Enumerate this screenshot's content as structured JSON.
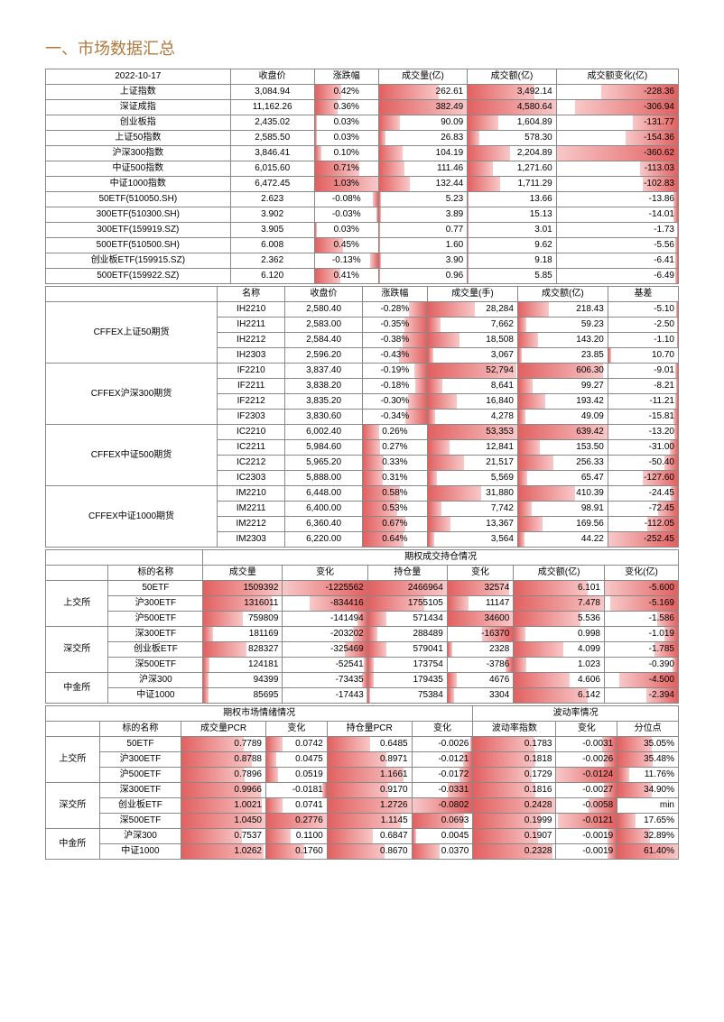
{
  "title": "一、市场数据汇总",
  "colors": {
    "bar_start": "#e26060",
    "bar_end": "#f8c8c8",
    "title": "#b07a3c",
    "border": "#888888"
  },
  "table1": {
    "date": "2022-10-17",
    "headers": [
      "收盘价",
      "涨跌幅",
      "成交量(亿)",
      "成交额(亿)",
      "成交额变化(亿)"
    ],
    "rows": [
      {
        "n": "上证指数",
        "close": "3,084.94",
        "chg": "0.42%",
        "chg_b": 42,
        "vol": "262.61",
        "vol_b": 68,
        "amt": "3,492.14",
        "amt_b": 76,
        "d": "-228.36",
        "d_b": -63
      },
      {
        "n": "深证成指",
        "close": "11,162.26",
        "chg": "0.36%",
        "chg_b": 36,
        "vol": "382.49",
        "vol_b": 100,
        "amt": "4,580.64",
        "amt_b": 100,
        "d": "-306.94",
        "d_b": -85
      },
      {
        "n": "创业板指",
        "close": "2,435.02",
        "chg": "0.03%",
        "chg_b": 3,
        "vol": "90.09",
        "vol_b": 24,
        "amt": "1,604.89",
        "amt_b": 35,
        "d": "-131.77",
        "d_b": -37
      },
      {
        "n": "上证50指数",
        "close": "2,585.50",
        "chg": "0.03%",
        "chg_b": 3,
        "vol": "26.83",
        "vol_b": 7,
        "amt": "578.30",
        "amt_b": 13,
        "d": "-154.36",
        "d_b": -43
      },
      {
        "n": "沪深300指数",
        "close": "3,846.41",
        "chg": "0.10%",
        "chg_b": 10,
        "vol": "104.19",
        "vol_b": 27,
        "amt": "2,204.89",
        "amt_b": 48,
        "d": "-360.62",
        "d_b": -100
      },
      {
        "n": "中证500指数",
        "close": "6,015.60",
        "chg": "0.71%",
        "chg_b": 71,
        "vol": "111.46",
        "vol_b": 29,
        "amt": "1,271.60",
        "amt_b": 28,
        "d": "-113.03",
        "d_b": -31
      },
      {
        "n": "中证1000指数",
        "close": "6,472.45",
        "chg": "1.03%",
        "chg_b": 100,
        "vol": "132.44",
        "vol_b": 35,
        "amt": "1,711.29",
        "amt_b": 37,
        "d": "-102.83",
        "d_b": -29
      },
      {
        "n": "50ETF(510050.SH)",
        "close": "2.623",
        "chg": "-0.08%",
        "chg_b": -8,
        "vol": "5.23",
        "vol_b": 2,
        "amt": "13.66",
        "amt_b": 1,
        "d": "-13.86",
        "d_b": -4
      },
      {
        "n": "300ETF(510300.SH)",
        "close": "3.902",
        "chg": "-0.03%",
        "chg_b": -3,
        "vol": "3.89",
        "vol_b": 2,
        "amt": "15.13",
        "amt_b": 1,
        "d": "-14.01",
        "d_b": -4
      },
      {
        "n": "300ETF(159919.SZ)",
        "close": "3.905",
        "chg": "0.03%",
        "chg_b": 3,
        "vol": "0.77",
        "vol_b": 1,
        "amt": "3.01",
        "amt_b": 1,
        "d": "-1.73",
        "d_b": -1
      },
      {
        "n": "500ETF(510500.SH)",
        "close": "6.008",
        "chg": "0.45%",
        "chg_b": 45,
        "vol": "1.60",
        "vol_b": 1,
        "amt": "9.62",
        "amt_b": 1,
        "d": "-5.56",
        "d_b": -2
      },
      {
        "n": "创业板ETF(159915.SZ)",
        "close": "2.362",
        "chg": "-0.13%",
        "chg_b": -13,
        "vol": "3.90",
        "vol_b": 2,
        "amt": "9.18",
        "amt_b": 1,
        "d": "-6.41",
        "d_b": -2
      },
      {
        "n": "500ETF(159922.SZ)",
        "close": "6.120",
        "chg": "0.41%",
        "chg_b": 41,
        "vol": "0.96",
        "vol_b": 1,
        "amt": "5.85",
        "amt_b": 1,
        "d": "-6.49",
        "d_b": -2
      }
    ]
  },
  "table2": {
    "headers": [
      "",
      "名称",
      "收盘价",
      "涨跌幅",
      "成交量(手)",
      "成交额(亿)",
      "基差"
    ],
    "groups": [
      {
        "g": "CFFEX上证50期货",
        "rows": [
          {
            "n": "IH2210",
            "c": "2,580.40",
            "chg": "-0.28%",
            "chg_b": -28,
            "v": "28,284",
            "v_b": 53,
            "a": "218.43",
            "a_b": 34,
            "b": "-5.10",
            "b_b": -2
          },
          {
            "n": "IH2211",
            "c": "2,583.00",
            "chg": "-0.35%",
            "chg_b": -35,
            "v": "7,662",
            "v_b": 14,
            "a": "59.23",
            "a_b": 9,
            "b": "-2.50",
            "b_b": -1
          },
          {
            "n": "IH2212",
            "c": "2,584.40",
            "chg": "-0.38%",
            "chg_b": -38,
            "v": "18,508",
            "v_b": 35,
            "a": "143.20",
            "a_b": 22,
            "b": "-1.10",
            "b_b": -1
          },
          {
            "n": "IH2303",
            "c": "2,596.20",
            "chg": "-0.43%",
            "chg_b": -43,
            "v": "3,067",
            "v_b": 6,
            "a": "23.85",
            "a_b": 4,
            "b": "10.70",
            "b_b": 4
          }
        ]
      },
      {
        "g": "CFFEX沪深300期货",
        "rows": [
          {
            "n": "IF2210",
            "c": "3,837.40",
            "chg": "-0.19%",
            "chg_b": -19,
            "v": "52,794",
            "v_b": 99,
            "a": "606.30",
            "a_b": 95,
            "b": "-9.01",
            "b_b": -4
          },
          {
            "n": "IF2211",
            "c": "3,838.20",
            "chg": "-0.18%",
            "chg_b": -18,
            "v": "8,641",
            "v_b": 16,
            "a": "99.27",
            "a_b": 16,
            "b": "-8.21",
            "b_b": -3
          },
          {
            "n": "IF2212",
            "c": "3,835.20",
            "chg": "-0.30%",
            "chg_b": -30,
            "v": "16,840",
            "v_b": 32,
            "a": "193.42",
            "a_b": 30,
            "b": "-11.21",
            "b_b": -4
          },
          {
            "n": "IF2303",
            "c": "3,830.60",
            "chg": "-0.34%",
            "chg_b": -34,
            "v": "4,278",
            "v_b": 8,
            "a": "49.09",
            "a_b": 8,
            "b": "-15.81",
            "b_b": -6
          }
        ]
      },
      {
        "g": "CFFEX中证500期货",
        "rows": [
          {
            "n": "IC2210",
            "c": "6,002.40",
            "chg": "0.26%",
            "chg_b": 26,
            "v": "53,353",
            "v_b": 100,
            "a": "639.42",
            "a_b": 100,
            "b": "-13.20",
            "b_b": -5
          },
          {
            "n": "IC2211",
            "c": "5,984.60",
            "chg": "0.27%",
            "chg_b": 27,
            "v": "12,841",
            "v_b": 24,
            "a": "153.50",
            "a_b": 24,
            "b": "-31.00",
            "b_b": -12
          },
          {
            "n": "IC2212",
            "c": "5,965.20",
            "chg": "0.33%",
            "chg_b": 33,
            "v": "21,517",
            "v_b": 40,
            "a": "256.33",
            "a_b": 40,
            "b": "-50.40",
            "b_b": -20
          },
          {
            "n": "IC2303",
            "c": "5,888.00",
            "chg": "0.31%",
            "chg_b": 31,
            "v": "5,569",
            "v_b": 10,
            "a": "65.47",
            "a_b": 10,
            "b": "-127.60",
            "b_b": -51
          }
        ]
      },
      {
        "g": "CFFEX中证1000期货",
        "rows": [
          {
            "n": "IM2210",
            "c": "6,448.00",
            "chg": "0.58%",
            "chg_b": 58,
            "v": "31,880",
            "v_b": 60,
            "a": "410.39",
            "a_b": 64,
            "b": "-24.45",
            "b_b": -10
          },
          {
            "n": "IM2211",
            "c": "6,400.00",
            "chg": "0.53%",
            "chg_b": 53,
            "v": "7,742",
            "v_b": 15,
            "a": "98.91",
            "a_b": 15,
            "b": "-72.45",
            "b_b": -29
          },
          {
            "n": "IM2212",
            "c": "6,360.40",
            "chg": "0.67%",
            "chg_b": 67,
            "v": "13,367",
            "v_b": 25,
            "a": "169.56",
            "a_b": 27,
            "b": "-112.05",
            "b_b": -44
          },
          {
            "n": "IM2303",
            "c": "6,220.00",
            "chg": "0.64%",
            "chg_b": 64,
            "v": "3,564",
            "v_b": 7,
            "a": "44.22",
            "a_b": 7,
            "b": "-252.45",
            "b_b": -100
          }
        ]
      }
    ]
  },
  "table3": {
    "title": "期权成交持仓情况",
    "headers": [
      "",
      "标的名称",
      "成交量",
      "变化",
      "持仓量",
      "变化",
      "成交额(亿)",
      "变化(亿)"
    ],
    "groups": [
      {
        "g": "上交所",
        "rows": [
          {
            "n": "50ETF",
            "v": "1509392",
            "v_b": 100,
            "vc": "-1225562",
            "vc_b": -100,
            "oi": "2466964",
            "oi_b": 100,
            "oic": "32574",
            "oic_b": 94,
            "a": "6.101",
            "a_b": 82,
            "ac": "-5.600",
            "ac_b": -100
          },
          {
            "n": "沪300ETF",
            "v": "1316011",
            "v_b": 87,
            "vc": "-834416",
            "vc_b": -68,
            "oi": "1755105",
            "oi_b": 71,
            "oic": "11147",
            "oic_b": 32,
            "a": "7.478",
            "a_b": 100,
            "ac": "-5.169",
            "ac_b": -92
          },
          {
            "n": "沪500ETF",
            "v": "759809",
            "v_b": 50,
            "vc": "-141494",
            "vc_b": -12,
            "oi": "571434",
            "oi_b": 23,
            "oic": "34600",
            "oic_b": 100,
            "a": "5.536",
            "a_b": 74,
            "ac": "-1.586",
            "ac_b": -28
          }
        ]
      },
      {
        "g": "深交所",
        "rows": [
          {
            "n": "深300ETF",
            "v": "181169",
            "v_b": 12,
            "vc": "-203202",
            "vc_b": -17,
            "oi": "288489",
            "oi_b": 12,
            "oic": "-16370",
            "oic_b": -47,
            "a": "0.998",
            "a_b": 13,
            "ac": "-1.019",
            "ac_b": -18
          },
          {
            "n": "创业板ETF",
            "v": "828327",
            "v_b": 55,
            "vc": "-325469",
            "vc_b": -27,
            "oi": "579041",
            "oi_b": 23,
            "oic": "2328",
            "oic_b": 7,
            "a": "4.099",
            "a_b": 55,
            "ac": "-1.785",
            "ac_b": -32
          },
          {
            "n": "深500ETF",
            "v": "124181",
            "v_b": 8,
            "vc": "-52541",
            "vc_b": -4,
            "oi": "173754",
            "oi_b": 7,
            "oic": "-3786",
            "oic_b": -11,
            "a": "1.023",
            "a_b": 14,
            "ac": "-0.390",
            "ac_b": -7
          }
        ]
      },
      {
        "g": "中金所",
        "rows": [
          {
            "n": "沪深300",
            "v": "94399",
            "v_b": 6,
            "vc": "-73435",
            "vc_b": -6,
            "oi": "179435",
            "oi_b": 7,
            "oic": "4676",
            "oic_b": 14,
            "a": "4.606",
            "a_b": 62,
            "ac": "-4.500",
            "ac_b": -80
          },
          {
            "n": "中证1000",
            "v": "85695",
            "v_b": 6,
            "vc": "-17443",
            "vc_b": -1,
            "oi": "75384",
            "oi_b": 3,
            "oic": "3304",
            "oic_b": 10,
            "a": "6.142",
            "a_b": 82,
            "ac": "-2.394",
            "ac_b": -43
          }
        ]
      }
    ]
  },
  "table4": {
    "h1": "期权市场情绪情况",
    "h2": "波动率情况",
    "headers": [
      "",
      "标的名称",
      "成交量PCR",
      "变化",
      "持仓量PCR",
      "变化",
      "波动率指数",
      "变化",
      "分位点"
    ],
    "groups": [
      {
        "g": "上交所",
        "rows": [
          {
            "n": "50ETF",
            "p1": "0.7789",
            "p1_b": 74,
            "c1": "0.0742",
            "c1_b": 27,
            "p2": "0.6485",
            "p2_b": 51,
            "c2": "-0.0026",
            "c2_b": -3,
            "v": "0.1783",
            "v_b": 74,
            "vc": "-0.0031",
            "vc_b": -25,
            "q": "35.05%",
            "q_b": 57
          },
          {
            "n": "沪300ETF",
            "p1": "0.8788",
            "p1_b": 84,
            "c1": "0.0475",
            "c1_b": 17,
            "p2": "0.8971",
            "p2_b": 70,
            "c2": "-0.0121",
            "c2_b": -15,
            "v": "0.1818",
            "v_b": 75,
            "vc": "-0.0026",
            "vc_b": -21,
            "q": "35.48%",
            "q_b": 58
          },
          {
            "n": "沪500ETF",
            "p1": "0.7896",
            "p1_b": 75,
            "c1": "0.0519",
            "c1_b": 19,
            "p2": "1.1661",
            "p2_b": 91,
            "c2": "-0.0172",
            "c2_b": -21,
            "v": "0.1729",
            "v_b": 71,
            "vc": "-0.0124",
            "vc_b": -100,
            "q": "11.76%",
            "q_b": 19
          }
        ]
      },
      {
        "g": "深交所",
        "rows": [
          {
            "n": "深300ETF",
            "p1": "0.9966",
            "p1_b": 95,
            "c1": "-0.0181",
            "c1_b": -7,
            "p2": "0.9170",
            "p2_b": 72,
            "c2": "-0.0331",
            "c2_b": -41,
            "v": "0.1816",
            "v_b": 75,
            "vc": "-0.0027",
            "vc_b": -22,
            "q": "34.90%",
            "q_b": 57
          },
          {
            "n": "创业板ETF",
            "p1": "1.0021",
            "p1_b": 96,
            "c1": "0.0741",
            "c1_b": 27,
            "p2": "1.2726",
            "p2_b": 100,
            "c2": "-0.0802",
            "c2_b": -100,
            "v": "0.2428",
            "v_b": 100,
            "vc": "-0.0058",
            "vc_b": -47,
            "q": "min",
            "q_b": 0
          },
          {
            "n": "深500ETF",
            "p1": "1.0450",
            "p1_b": 100,
            "c1": "0.2776",
            "c1_b": 100,
            "p2": "1.1145",
            "p2_b": 88,
            "c2": "0.0693",
            "c2_b": 86,
            "v": "0.1999",
            "v_b": 82,
            "vc": "-0.0121",
            "vc_b": -98,
            "q": "17.65%",
            "q_b": 29
          }
        ]
      },
      {
        "g": "中金所",
        "rows": [
          {
            "n": "沪深300",
            "p1": "0.7537",
            "p1_b": 72,
            "c1": "0.1100",
            "c1_b": 40,
            "p2": "0.6847",
            "p2_b": 54,
            "c2": "0.0045",
            "c2_b": 6,
            "v": "0.1907",
            "v_b": 79,
            "vc": "-0.0019",
            "vc_b": -15,
            "q": "32.89%",
            "q_b": 54
          },
          {
            "n": "中证1000",
            "p1": "1.0262",
            "p1_b": 98,
            "c1": "0.1760",
            "c1_b": 63,
            "p2": "0.8670",
            "p2_b": 68,
            "c2": "0.0370",
            "c2_b": 46,
            "v": "0.2328",
            "v_b": 96,
            "vc": "-0.0019",
            "vc_b": -15,
            "q": "61.40%",
            "q_b": 100
          }
        ]
      }
    ]
  }
}
